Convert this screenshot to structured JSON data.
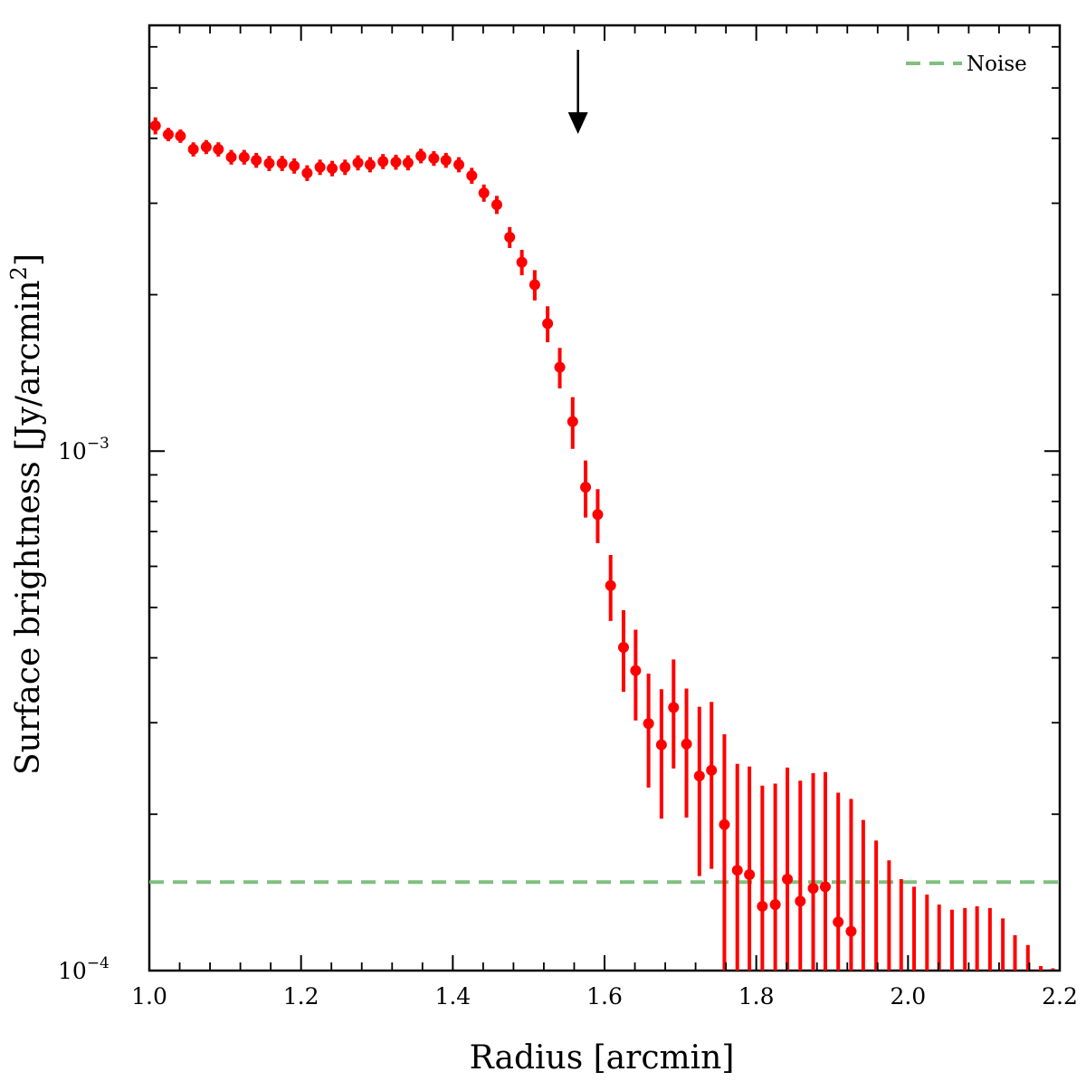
{
  "chart_data": {
    "type": "scatter",
    "title": "",
    "xlabel": "Radius [arcmin]",
    "ylabel_main": "Surface brightness [Jy/arcmin",
    "ylabel_sup": "2",
    "ylabel_close": "]",
    "xlim": [
      1.0,
      2.2
    ],
    "ylim": [
      0.0001,
      0.0066
    ],
    "yscale": "log",
    "grid": false,
    "legend_position": "top-right",
    "x_ticks": [
      1.0,
      1.2,
      1.4,
      1.6,
      1.8,
      2.0,
      2.2
    ],
    "x_tick_labels": [
      "1.0",
      "1.2",
      "1.4",
      "1.6",
      "1.8",
      "2.0",
      "2.2"
    ],
    "y_tick_labels": [
      {
        "value": 0.001,
        "base": "10",
        "exp": "−3"
      },
      {
        "value": 0.0001,
        "base": "10",
        "exp": "−4"
      }
    ],
    "marker_color": "#ff0000",
    "noise_color": "#7fbf7f",
    "arrow_x": 1.565,
    "noise": {
      "name": "Noise",
      "y": 0.000148
    },
    "series": [
      {
        "name": "",
        "x": [
          1.008,
          1.025,
          1.041,
          1.058,
          1.075,
          1.091,
          1.108,
          1.125,
          1.141,
          1.158,
          1.175,
          1.191,
          1.208,
          1.225,
          1.241,
          1.258,
          1.275,
          1.291,
          1.308,
          1.325,
          1.341,
          1.358,
          1.375,
          1.391,
          1.408,
          1.425,
          1.441,
          1.458,
          1.475,
          1.491,
          1.508,
          1.525,
          1.541,
          1.558,
          1.575,
          1.591,
          1.608,
          1.625,
          1.641,
          1.658,
          1.675,
          1.691,
          1.708,
          1.725,
          1.741,
          1.758,
          1.775,
          1.791,
          1.808,
          1.825,
          1.841,
          1.858,
          1.875,
          1.891,
          1.908,
          1.925,
          1.941,
          1.958,
          1.975,
          1.991,
          2.008,
          2.025,
          2.041,
          2.058,
          2.075,
          2.091,
          2.108,
          2.125,
          2.141,
          2.158,
          2.175,
          2.191
        ],
        "y": [
          0.00423,
          0.00407,
          0.00404,
          0.00381,
          0.00385,
          0.00381,
          0.00368,
          0.00368,
          0.00363,
          0.00358,
          0.00358,
          0.00354,
          0.00343,
          0.00352,
          0.0035,
          0.00352,
          0.00359,
          0.00356,
          0.00361,
          0.0036,
          0.00359,
          0.0037,
          0.00366,
          0.00363,
          0.00356,
          0.00339,
          0.00314,
          0.00298,
          0.00258,
          0.00231,
          0.00209,
          0.00176,
          0.00145,
          0.00114,
          0.000852,
          0.000755,
          0.000551,
          0.000419,
          0.000378,
          0.000299,
          0.000272,
          0.000321,
          0.000273,
          0.000237,
          0.000243,
          0.000191,
          0.000156,
          0.000153,
          0.000133,
          0.000134,
          0.00015,
          0.000136,
          0.000144,
          0.000145,
          0.000124,
          0.000119,
          null,
          null,
          null,
          null,
          null,
          null,
          null,
          null,
          null,
          null,
          null,
          null,
          null,
          null,
          null,
          null
        ],
        "y_low": [
          0.00407,
          0.00395,
          0.00392,
          0.00369,
          0.00373,
          0.00369,
          0.00356,
          0.00356,
          0.00351,
          0.00346,
          0.00346,
          0.00342,
          0.00331,
          0.0034,
          0.00338,
          0.0034,
          0.00347,
          0.00344,
          0.00349,
          0.00348,
          0.00347,
          0.00358,
          0.00354,
          0.00351,
          0.00344,
          0.00327,
          0.00302,
          0.00286,
          0.00246,
          0.00218,
          0.00195,
          0.00162,
          0.00132,
          0.00101,
          0.000745,
          0.000665,
          0.000471,
          0.000344,
          0.000303,
          0.000225,
          0.000196,
          0.000245,
          0.000197,
          0.000152,
          0.000157,
          0.0001,
          0.0001,
          0.0001,
          0.0001,
          0.0001,
          0.0001,
          0.0001,
          0.0001,
          0.0001,
          0.0001,
          0.0001,
          0.0001,
          0.0001,
          0.0001,
          0.0001,
          0.0001,
          0.0001,
          0.0001,
          0.0001,
          0.0001,
          0.0001,
          0.0001,
          0.0001,
          0.0001,
          0.0001,
          0.0001,
          0.0001
        ],
        "y_high": [
          0.00439,
          0.00419,
          0.00416,
          0.00393,
          0.00397,
          0.00393,
          0.0038,
          0.0038,
          0.00375,
          0.0037,
          0.0037,
          0.00366,
          0.00355,
          0.00364,
          0.00362,
          0.00364,
          0.00371,
          0.00368,
          0.00373,
          0.00372,
          0.00371,
          0.00382,
          0.00378,
          0.00375,
          0.00368,
          0.00351,
          0.00326,
          0.0031,
          0.0027,
          0.00244,
          0.00223,
          0.0019,
          0.00158,
          0.00127,
          0.000959,
          0.000845,
          0.000631,
          0.000494,
          0.000453,
          0.000373,
          0.000348,
          0.000397,
          0.000349,
          0.000322,
          0.000329,
          0.000285,
          0.00025,
          0.000247,
          0.000227,
          0.000229,
          0.000246,
          0.000232,
          0.00024,
          0.000241,
          0.00022,
          0.000214,
          0.000195,
          0.000178,
          0.000163,
          0.00015,
          0.000145,
          0.00014,
          0.000134,
          0.000131,
          0.000132,
          0.000133,
          0.000132,
          0.000126,
          0.000117,
          0.000112,
          0.000102,
          0.000101
        ]
      }
    ]
  }
}
